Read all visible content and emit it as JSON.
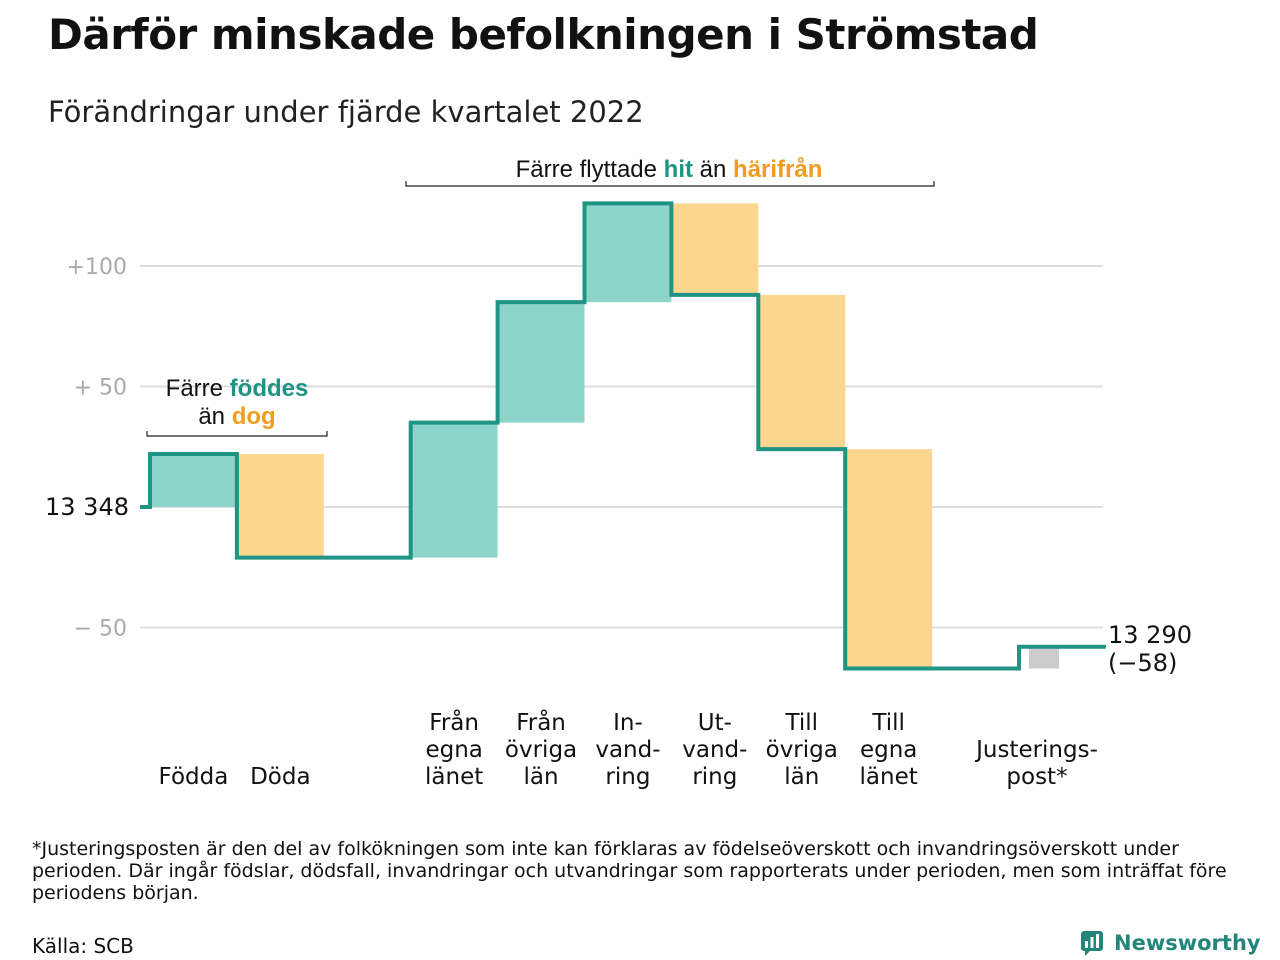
{
  "title": "Därför minskade befolkningen i Strömstad",
  "subtitle": "Förändringar under fjärde kvartalet 2022",
  "footnote": "*Justeringsposten är den del av folkökningen som inte kan förklaras av födelseöverskott och invandringsöverskott under perioden. Där ingår födslar, dödsfall, invandringar och utvandringar som rapporterats under perioden, men som inträffat före periodens början.",
  "source": "Källa: SCB",
  "brand": "Newsworthy",
  "annotations": {
    "births": {
      "line1_prefix": "Färre",
      "line1_highlight": "föddes",
      "line2_prefix": "än",
      "line2_highlight": "dog"
    },
    "migration": {
      "prefix": "Färre flyttade",
      "highlight1": "hit",
      "middle": "än",
      "highlight2": "härifrån"
    }
  },
  "colors": {
    "increase": "#8dd5cb",
    "decrease": "#fad68f",
    "adjustment": "#cccccc",
    "line": "#1f9384",
    "teal_text": "#1f9384",
    "orange_text": "#ef9d1e",
    "grid": "#dddddd",
    "tick_text": "#aaaaaa"
  },
  "chart_data": {
    "type": "waterfall",
    "start_value": 13348,
    "start_label": "13 348",
    "end_value": 13290,
    "end_label": "13 290",
    "end_change_label": "(−58)",
    "y_ticks": [
      {
        "value": 100,
        "label": "+100"
      },
      {
        "value": 50,
        "label": "+ 50"
      },
      {
        "value": 0,
        "label": "13 348"
      },
      {
        "value": -50,
        "label": "− 50"
      }
    ],
    "ylim": [
      -70,
      130
    ],
    "steps": [
      {
        "category": "Födda",
        "label_lines": [
          "Födda"
        ],
        "change": 22,
        "kind": "increase"
      },
      {
        "category": "Döda",
        "label_lines": [
          "Döda"
        ],
        "change": -43,
        "kind": "decrease"
      },
      {
        "category": "Från egna länet",
        "label_lines": [
          "Från",
          "egna",
          "länet"
        ],
        "change": 56,
        "kind": "increase"
      },
      {
        "category": "Från övriga län",
        "label_lines": [
          "Från",
          "övriga",
          "län"
        ],
        "change": 50,
        "kind": "increase"
      },
      {
        "category": "Invandring",
        "label_lines": [
          "In-",
          "vand-",
          "ring"
        ],
        "change": 41,
        "kind": "increase"
      },
      {
        "category": "Utvandring",
        "label_lines": [
          "Ut-",
          "vand-",
          "ring"
        ],
        "change": -38,
        "kind": "decrease"
      },
      {
        "category": "Till övriga län",
        "label_lines": [
          "Till",
          "övriga",
          "län"
        ],
        "change": -64,
        "kind": "decrease"
      },
      {
        "category": "Till egna länet",
        "label_lines": [
          "Till",
          "egna",
          "länet"
        ],
        "change": -91,
        "kind": "decrease"
      },
      {
        "category": "Justeringspost*",
        "label_lines": [
          "Justerings-",
          "post*"
        ],
        "change": 9,
        "kind": "adjustment"
      }
    ]
  }
}
